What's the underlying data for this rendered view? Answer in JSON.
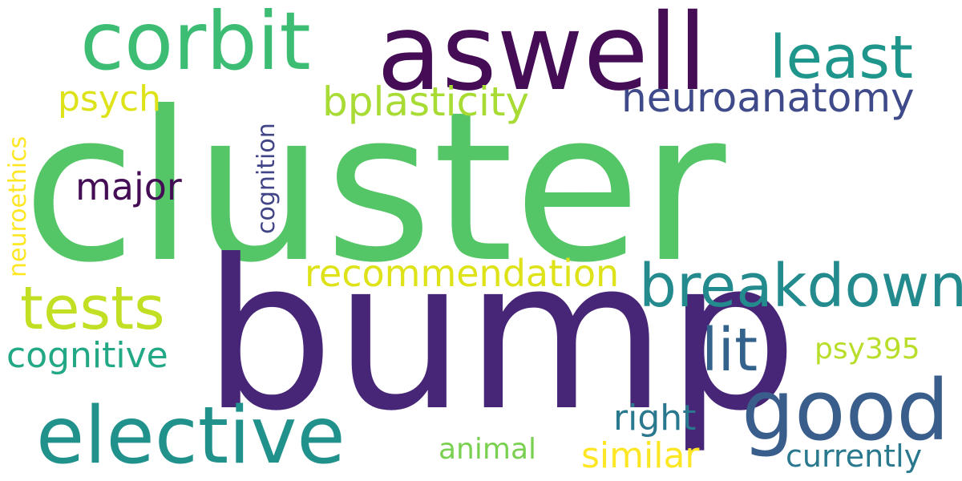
{
  "words": [
    {
      "text": "cluster",
      "color": "#55c667"
    },
    {
      "text": "bump",
      "color": "#482677"
    },
    {
      "text": "aswell",
      "color": "#440d55"
    },
    {
      "text": "corbit",
      "color": "#3dbc74"
    },
    {
      "text": "good",
      "color": "#3a5e8c"
    },
    {
      "text": "elective",
      "color": "#21918c"
    },
    {
      "text": "breakdown",
      "color": "#238a8d"
    },
    {
      "text": "least",
      "color": "#1f968b"
    },
    {
      "text": "tests",
      "color": "#c2df23"
    },
    {
      "text": "lit",
      "color": "#33638d"
    },
    {
      "text": "bplasticity",
      "color": "#a8db34"
    },
    {
      "text": "neuroanatomy",
      "color": "#3e4a89"
    },
    {
      "text": "recommendation",
      "color": "#dde318"
    },
    {
      "text": "psych",
      "color": "#dde318"
    },
    {
      "text": "major",
      "color": "#440d55"
    },
    {
      "text": "cognitive",
      "color": "#22a884"
    },
    {
      "text": "right",
      "color": "#2a788e"
    },
    {
      "text": "similar",
      "color": "#fde725"
    },
    {
      "text": "currently",
      "color": "#2a788e"
    },
    {
      "text": "psy395",
      "color": "#b8de29"
    },
    {
      "text": "animal",
      "color": "#7ad151"
    },
    {
      "text": "cognition",
      "color": "#414487"
    },
    {
      "text": "neuroethics",
      "color": "#fde725"
    }
  ]
}
